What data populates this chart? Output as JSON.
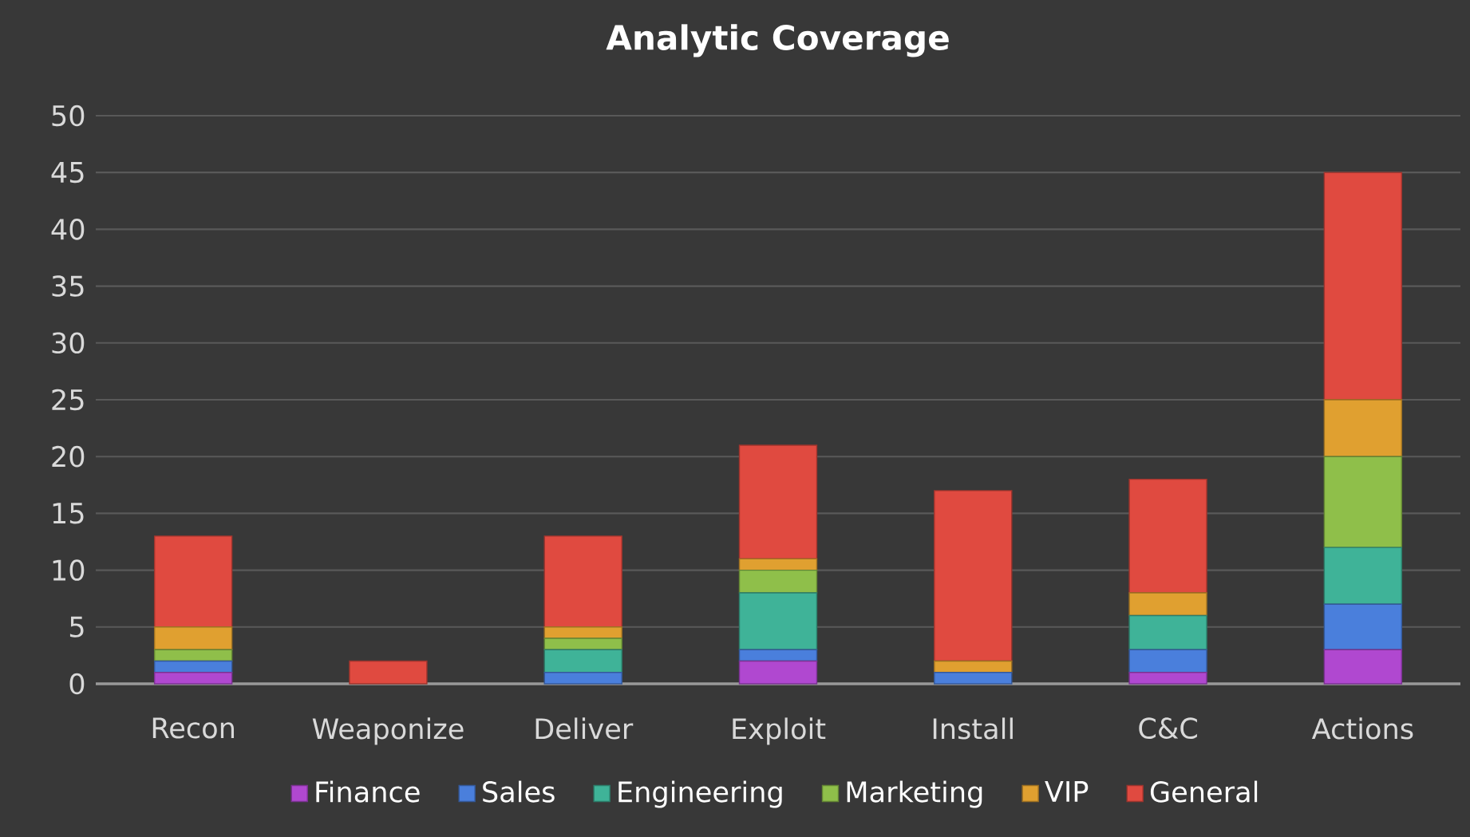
{
  "chart_data": {
    "type": "bar",
    "title": "Analytic Coverage",
    "stacked": true,
    "categories": [
      "Recon",
      "Weaponize",
      "Deliver",
      "Exploit",
      "Install",
      "C&C",
      "Actions"
    ],
    "series": [
      {
        "name": "Finance",
        "color": "#b048d0",
        "values": [
          1,
          0,
          0,
          2,
          0,
          1,
          3
        ]
      },
      {
        "name": "Sales",
        "color": "#4a7fdc",
        "values": [
          1,
          0,
          1,
          1,
          1,
          2,
          4
        ]
      },
      {
        "name": "Engineering",
        "color": "#3fb398",
        "values": [
          0,
          0,
          2,
          5,
          0,
          3,
          5
        ]
      },
      {
        "name": "Marketing",
        "color": "#8fbf4a",
        "values": [
          1,
          0,
          1,
          2,
          0,
          0,
          8
        ]
      },
      {
        "name": "VIP",
        "color": "#e0a030",
        "values": [
          2,
          0,
          1,
          1,
          1,
          2,
          5
        ]
      },
      {
        "name": "General",
        "color": "#e04a40",
        "values": [
          8,
          2,
          8,
          10,
          15,
          10,
          20
        ]
      }
    ],
    "ylim": [
      0,
      50
    ],
    "yticks": [
      0,
      5,
      10,
      15,
      20,
      25,
      30,
      35,
      40,
      45,
      50
    ],
    "grid": "y",
    "legend": "bottom"
  }
}
